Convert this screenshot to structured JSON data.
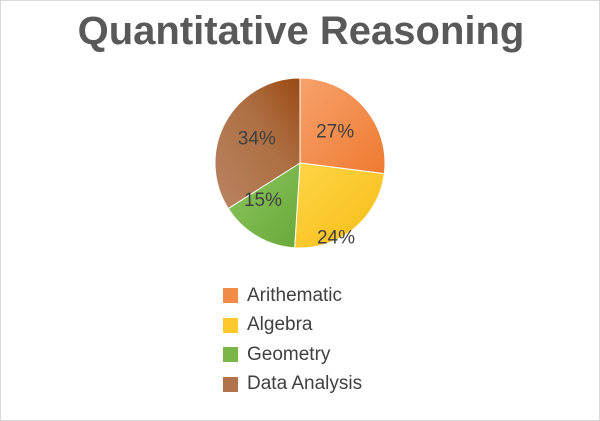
{
  "chart_data": {
    "type": "pie",
    "title": "Quantitative Reasoning",
    "categories": [
      "Arithematic",
      "Algebra",
      "Geometry",
      "Data Analysis"
    ],
    "values": [
      27,
      24,
      15,
      34
    ],
    "value_labels": [
      "27%",
      "24%",
      "15%",
      "34%"
    ],
    "colors": [
      "#f28b48",
      "#ffc92e",
      "#7ab648",
      "#b0734b"
    ],
    "legend": "bottom",
    "start_angle": "top, clockwise"
  }
}
